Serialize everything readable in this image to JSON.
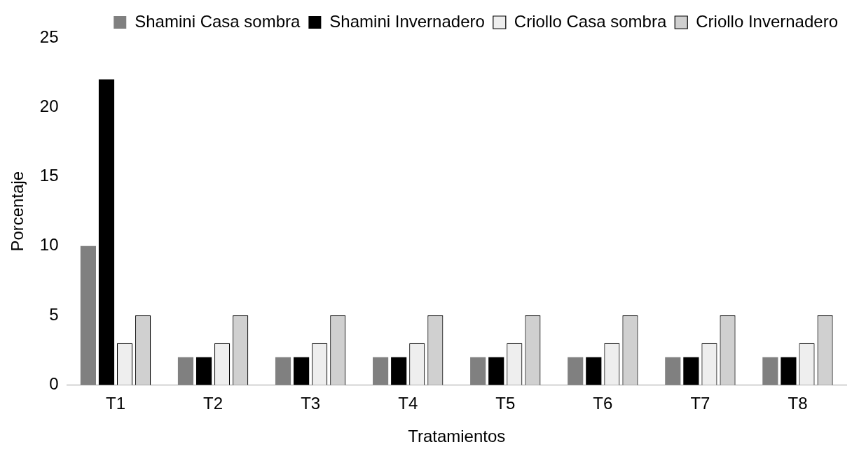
{
  "chart_data": {
    "type": "bar",
    "xlabel": "Tratamientos",
    "ylabel": "Porcentaje",
    "categories": [
      "T1",
      "T2",
      "T3",
      "T4",
      "T5",
      "T6",
      "T7",
      "T8"
    ],
    "series": [
      {
        "name": "Shamini Casa sombra",
        "color": "#808080",
        "values": [
          10,
          2,
          2,
          2,
          2,
          2,
          2,
          2
        ]
      },
      {
        "name": "Shamini Invernadero",
        "color": "#000000",
        "values": [
          22,
          2,
          2,
          2,
          2,
          2,
          2,
          2
        ]
      },
      {
        "name": "Criollo Casa sombra",
        "color": "#eeeeee",
        "values": [
          3,
          3,
          3,
          3,
          3,
          3,
          3,
          3
        ]
      },
      {
        "name": "Criollo Invernadero",
        "color": "#d0d0d0",
        "values": [
          5,
          5,
          5,
          5,
          5,
          5,
          5,
          5
        ]
      }
    ],
    "ylim": [
      0,
      25
    ],
    "yticks": [
      0,
      5,
      10,
      15,
      20,
      25
    ],
    "grid": false,
    "legend": "top right"
  }
}
